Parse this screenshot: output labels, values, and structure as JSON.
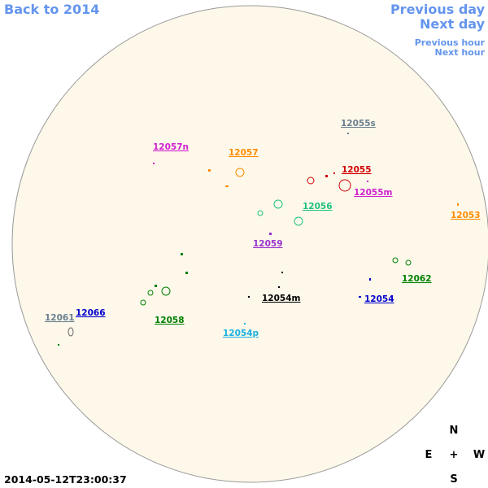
{
  "nav": {
    "back": "Back to 2014",
    "previous_day": "Previous day",
    "next_day": "Next day",
    "previous_hour": "Previous hour",
    "next_hour": "Next hour"
  },
  "regions": [
    "12055s",
    "12057n",
    "12057",
    "12055",
    "12055m",
    "12056",
    "12053",
    "12059",
    "12062",
    "12054m",
    "12054",
    "12061",
    "12066",
    "12058",
    "12054p"
  ],
  "compass": {
    "north": "N",
    "east": "E",
    "center": "+",
    "west": "W",
    "south": "S"
  },
  "timestamp": "2014-05-12T23:00:37"
}
